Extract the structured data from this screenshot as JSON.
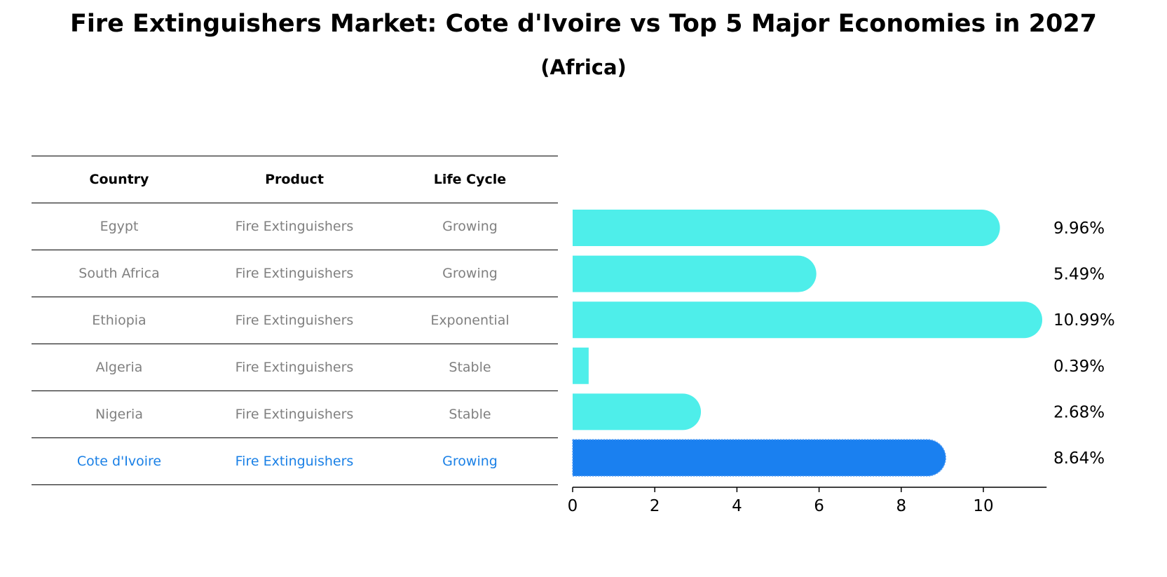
{
  "title": "Fire Extinguishers Market: Cote d'Ivoire vs Top 5 Major Economies in 2027",
  "subtitle": "(Africa)",
  "table": {
    "headers": [
      "Country",
      "Product",
      "Life Cycle"
    ],
    "rows": [
      {
        "country": "Egypt",
        "product": "Fire Extinguishers",
        "life_cycle": "Growing"
      },
      {
        "country": "South Africa",
        "product": "Fire Extinguishers",
        "life_cycle": "Growing"
      },
      {
        "country": "Ethiopia",
        "product": "Fire Extinguishers",
        "life_cycle": "Exponential"
      },
      {
        "country": "Algeria",
        "product": "Fire Extinguishers",
        "life_cycle": "Stable"
      },
      {
        "country": "Nigeria",
        "product": "Fire Extinguishers",
        "life_cycle": "Stable"
      },
      {
        "country": "Cote d'Ivoire",
        "product": "Fire Extinguishers",
        "life_cycle": "Growing"
      }
    ]
  },
  "colors": {
    "bar": "#4eeeea",
    "highlight": "#1a80f0",
    "highlight_text": "#1a80e6",
    "muted_text": "#808080"
  },
  "chart_data": {
    "type": "bar",
    "orientation": "horizontal",
    "categories": [
      "Egypt",
      "South Africa",
      "Ethiopia",
      "Algeria",
      "Nigeria",
      "Cote d'Ivoire"
    ],
    "values": [
      9.96,
      5.49,
      10.99,
      0.39,
      2.68,
      8.64
    ],
    "value_labels": [
      "9.96%",
      "5.49%",
      "10.99%",
      "0.39%",
      "2.68%",
      "8.64%"
    ],
    "highlight_category": "Cote d'Ivoire",
    "xlim": [
      0,
      11.54
    ],
    "xticks": [
      0,
      2,
      4,
      6,
      8,
      10
    ],
    "xtick_labels": [
      "0",
      "2",
      "4",
      "6",
      "8",
      "10"
    ]
  }
}
